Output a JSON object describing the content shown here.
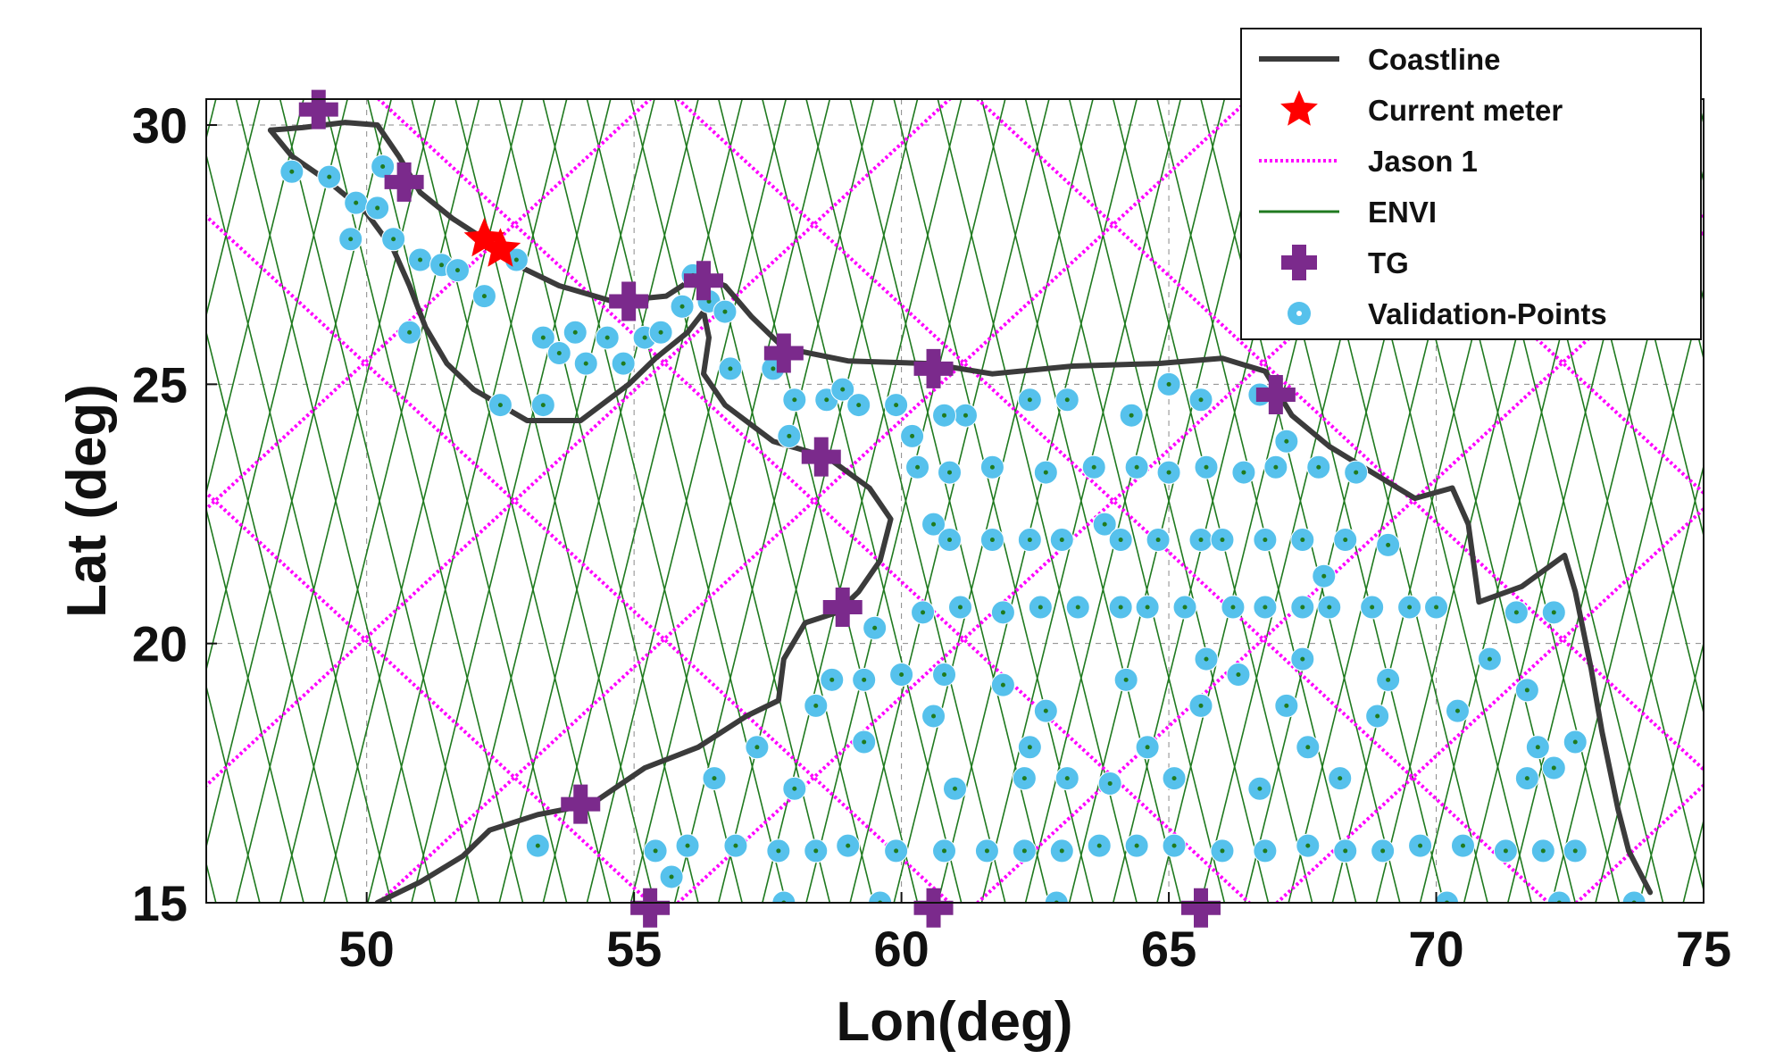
{
  "chart_data": {
    "type": "scatter",
    "title": "",
    "xlabel": "Lon(deg)",
    "ylabel": "Lat (deg)",
    "xlim": [
      47,
      75
    ],
    "ylim": [
      15,
      30.5
    ],
    "xticks": [
      "50",
      "55",
      "60",
      "65",
      "70",
      "75"
    ],
    "yticks": [
      "15",
      "20",
      "25",
      "30"
    ],
    "grid": "dashed",
    "legend_position": "top-right",
    "legend": [
      {
        "label": "Coastline",
        "symbol": "line",
        "color": "#3b3b3b"
      },
      {
        "label": "Current meter",
        "symbol": "star",
        "color": "#ff0000"
      },
      {
        "label": "Jason 1",
        "symbol": "dotted-line",
        "color": "#ff00ff"
      },
      {
        "label": "ENVI",
        "symbol": "line",
        "color": "#1f7a1f"
      },
      {
        "label": "TG",
        "symbol": "plus",
        "color": "#7b2a8c"
      },
      {
        "label": "Validation-Points",
        "symbol": "ring",
        "color": "#4fc3f7"
      }
    ],
    "colors": {
      "coastline": "#3b3b3b",
      "current_meter": "#ff0000",
      "jason1": "#ff00ff",
      "envi": "#1f7a1f",
      "tg": "#7b2a8c",
      "validation": "#56c1ec",
      "grid": "#8a8a8a"
    },
    "coastline": [
      [
        48.2,
        29.9
      ],
      [
        48.8,
        29.95
      ],
      [
        49.6,
        30.05
      ],
      [
        50.2,
        30.0
      ],
      [
        50.6,
        29.4
      ],
      [
        51.0,
        28.7
      ],
      [
        51.6,
        28.2
      ],
      [
        52.2,
        27.8
      ],
      [
        52.8,
        27.3
      ],
      [
        53.6,
        26.9
      ],
      [
        54.6,
        26.6
      ],
      [
        55.6,
        26.7
      ],
      [
        56.2,
        27.1
      ],
      [
        56.7,
        26.9
      ],
      [
        57.2,
        26.3
      ],
      [
        57.8,
        25.7
      ],
      [
        59.0,
        25.45
      ],
      [
        60.5,
        25.4
      ],
      [
        61.7,
        25.2
      ],
      [
        63.2,
        25.35
      ],
      [
        64.8,
        25.4
      ],
      [
        66.0,
        25.5
      ],
      [
        66.8,
        25.25
      ],
      [
        67.3,
        24.4
      ],
      [
        68.0,
        23.8
      ],
      [
        68.8,
        23.3
      ],
      [
        69.6,
        22.8
      ],
      [
        70.3,
        23.0
      ],
      [
        70.6,
        22.3
      ],
      [
        70.8,
        20.8
      ],
      [
        71.6,
        21.1
      ],
      [
        72.4,
        21.7
      ],
      [
        72.6,
        21.0
      ],
      [
        72.9,
        19.5
      ],
      [
        73.1,
        18.3
      ],
      [
        73.4,
        16.8
      ],
      [
        73.6,
        16.0
      ],
      [
        74.0,
        15.2
      ]
    ],
    "coastline_inner": [
      [
        48.2,
        29.9
      ],
      [
        48.6,
        29.4
      ],
      [
        49.3,
        28.9
      ],
      [
        50.0,
        28.3
      ],
      [
        50.5,
        27.6
      ],
      [
        50.8,
        26.9
      ],
      [
        51.1,
        26.1
      ],
      [
        51.5,
        25.4
      ],
      [
        52.0,
        24.9
      ],
      [
        53.0,
        24.3
      ],
      [
        54.0,
        24.3
      ],
      [
        54.9,
        25.0
      ],
      [
        55.4,
        25.5
      ],
      [
        56.0,
        26.0
      ],
      [
        56.3,
        26.4
      ],
      [
        56.4,
        25.9
      ],
      [
        56.3,
        25.2
      ],
      [
        56.7,
        24.6
      ],
      [
        57.6,
        23.9
      ],
      [
        58.6,
        23.6
      ],
      [
        59.4,
        23.0
      ],
      [
        59.8,
        22.4
      ],
      [
        59.6,
        21.6
      ],
      [
        59.2,
        21.0
      ],
      [
        58.8,
        20.6
      ],
      [
        58.2,
        20.4
      ],
      [
        57.8,
        19.7
      ],
      [
        57.7,
        18.9
      ],
      [
        57.1,
        18.6
      ],
      [
        56.2,
        18.0
      ],
      [
        55.2,
        17.6
      ],
      [
        54.2,
        16.9
      ],
      [
        53.2,
        16.7
      ],
      [
        52.3,
        16.4
      ],
      [
        51.8,
        15.9
      ],
      [
        51.0,
        15.4
      ],
      [
        50.2,
        15.0
      ]
    ],
    "current_meter": [
      [
        52.2,
        27.8
      ],
      [
        52.5,
        27.6
      ]
    ],
    "tg_stations": [
      [
        49.1,
        30.3
      ],
      [
        50.7,
        28.9
      ],
      [
        54.9,
        26.6
      ],
      [
        56.3,
        27.0
      ],
      [
        57.8,
        25.6
      ],
      [
        60.6,
        25.3
      ],
      [
        67.0,
        24.8
      ],
      [
        58.5,
        23.6
      ],
      [
        58.9,
        20.7
      ],
      [
        54.0,
        16.9
      ],
      [
        55.3,
        14.9
      ],
      [
        60.6,
        14.9
      ],
      [
        65.6,
        14.9
      ]
    ],
    "validation_points": [
      [
        48.6,
        29.1
      ],
      [
        49.3,
        29.0
      ],
      [
        50.3,
        29.2
      ],
      [
        49.8,
        28.5
      ],
      [
        50.2,
        28.4
      ],
      [
        49.7,
        27.8
      ],
      [
        50.5,
        27.8
      ],
      [
        51.0,
        27.4
      ],
      [
        51.4,
        27.3
      ],
      [
        51.7,
        27.2
      ],
      [
        52.2,
        26.7
      ],
      [
        52.8,
        27.4
      ],
      [
        50.8,
        26.0
      ],
      [
        53.3,
        25.9
      ],
      [
        53.9,
        26.0
      ],
      [
        53.6,
        25.6
      ],
      [
        54.5,
        25.9
      ],
      [
        54.8,
        25.4
      ],
      [
        54.1,
        25.4
      ],
      [
        55.2,
        25.9
      ],
      [
        55.5,
        26.0
      ],
      [
        55.9,
        26.5
      ],
      [
        56.1,
        27.1
      ],
      [
        56.4,
        26.6
      ],
      [
        56.7,
        26.4
      ],
      [
        52.5,
        24.6
      ],
      [
        53.3,
        24.6
      ],
      [
        56.8,
        25.3
      ],
      [
        57.6,
        25.3
      ],
      [
        58.0,
        24.7
      ],
      [
        58.6,
        24.7
      ],
      [
        58.9,
        24.9
      ],
      [
        59.2,
        24.6
      ],
      [
        59.9,
        24.6
      ],
      [
        57.9,
        24.0
      ],
      [
        60.2,
        24.0
      ],
      [
        60.3,
        23.4
      ],
      [
        60.9,
        23.3
      ],
      [
        61.7,
        23.4
      ],
      [
        61.2,
        24.4
      ],
      [
        60.8,
        24.4
      ],
      [
        62.4,
        24.7
      ],
      [
        63.1,
        24.7
      ],
      [
        64.3,
        24.4
      ],
      [
        65.0,
        25.0
      ],
      [
        65.6,
        24.7
      ],
      [
        66.7,
        24.8
      ],
      [
        62.7,
        23.3
      ],
      [
        63.6,
        23.4
      ],
      [
        64.4,
        23.4
      ],
      [
        65.0,
        23.3
      ],
      [
        65.7,
        23.4
      ],
      [
        66.4,
        23.3
      ],
      [
        67.0,
        23.4
      ],
      [
        67.8,
        23.4
      ],
      [
        68.5,
        23.3
      ],
      [
        67.2,
        23.9
      ],
      [
        60.6,
        22.3
      ],
      [
        60.9,
        22.0
      ],
      [
        61.7,
        22.0
      ],
      [
        62.4,
        22.0
      ],
      [
        63.0,
        22.0
      ],
      [
        63.8,
        22.3
      ],
      [
        64.1,
        22.0
      ],
      [
        64.8,
        22.0
      ],
      [
        65.6,
        22.0
      ],
      [
        66.0,
        22.0
      ],
      [
        66.8,
        22.0
      ],
      [
        67.5,
        22.0
      ],
      [
        68.3,
        22.0
      ],
      [
        69.1,
        21.9
      ],
      [
        67.9,
        21.3
      ],
      [
        59.5,
        20.3
      ],
      [
        60.4,
        20.6
      ],
      [
        61.1,
        20.7
      ],
      [
        61.9,
        20.6
      ],
      [
        62.6,
        20.7
      ],
      [
        63.3,
        20.7
      ],
      [
        64.1,
        20.7
      ],
      [
        64.6,
        20.7
      ],
      [
        65.3,
        20.7
      ],
      [
        66.2,
        20.7
      ],
      [
        66.8,
        20.7
      ],
      [
        67.5,
        20.7
      ],
      [
        68.0,
        20.7
      ],
      [
        68.8,
        20.7
      ],
      [
        69.5,
        20.7
      ],
      [
        70.0,
        20.7
      ],
      [
        71.5,
        20.6
      ],
      [
        72.2,
        20.6
      ],
      [
        58.7,
        19.3
      ],
      [
        59.3,
        19.3
      ],
      [
        60.0,
        19.4
      ],
      [
        60.8,
        19.4
      ],
      [
        61.9,
        19.2
      ],
      [
        65.7,
        19.7
      ],
      [
        64.2,
        19.3
      ],
      [
        66.3,
        19.4
      ],
      [
        67.5,
        19.7
      ],
      [
        69.1,
        19.3
      ],
      [
        71.0,
        19.7
      ],
      [
        71.7,
        19.1
      ],
      [
        58.4,
        18.8
      ],
      [
        59.3,
        18.1
      ],
      [
        60.6,
        18.6
      ],
      [
        57.3,
        18.0
      ],
      [
        62.4,
        18.0
      ],
      [
        62.7,
        18.7
      ],
      [
        64.6,
        18.0
      ],
      [
        65.6,
        18.8
      ],
      [
        67.2,
        18.8
      ],
      [
        67.6,
        18.0
      ],
      [
        68.9,
        18.6
      ],
      [
        70.4,
        18.7
      ],
      [
        71.9,
        18.0
      ],
      [
        72.6,
        18.1
      ],
      [
        56.5,
        17.4
      ],
      [
        58.0,
        17.2
      ],
      [
        61.0,
        17.2
      ],
      [
        62.3,
        17.4
      ],
      [
        63.1,
        17.4
      ],
      [
        63.9,
        17.3
      ],
      [
        65.1,
        17.4
      ],
      [
        66.7,
        17.2
      ],
      [
        68.2,
        17.4
      ],
      [
        71.7,
        17.4
      ],
      [
        72.2,
        17.6
      ],
      [
        53.2,
        16.1
      ],
      [
        55.4,
        16.0
      ],
      [
        56.0,
        16.1
      ],
      [
        56.9,
        16.1
      ],
      [
        57.7,
        16.0
      ],
      [
        58.4,
        16.0
      ],
      [
        59.0,
        16.1
      ],
      [
        59.9,
        16.0
      ],
      [
        60.8,
        16.0
      ],
      [
        61.6,
        16.0
      ],
      [
        62.3,
        16.0
      ],
      [
        63.0,
        16.0
      ],
      [
        63.7,
        16.1
      ],
      [
        64.4,
        16.1
      ],
      [
        65.1,
        16.1
      ],
      [
        66.0,
        16.0
      ],
      [
        66.8,
        16.0
      ],
      [
        67.6,
        16.1
      ],
      [
        68.3,
        16.0
      ],
      [
        69.0,
        16.0
      ],
      [
        69.7,
        16.1
      ],
      [
        70.5,
        16.1
      ],
      [
        71.3,
        16.0
      ],
      [
        72.0,
        16.0
      ],
      [
        72.6,
        16.0
      ],
      [
        55.7,
        15.5
      ],
      [
        57.8,
        15.0
      ],
      [
        59.6,
        15.0
      ],
      [
        62.9,
        15.0
      ],
      [
        70.2,
        15.0
      ],
      [
        72.3,
        15.0
      ],
      [
        73.7,
        15.0
      ]
    ],
    "jason1_tracks": {
      "start_lons": [
        38.5,
        44.1,
        49.7,
        55.3,
        60.9,
        66.5,
        72.1,
        77.7,
        83.3
      ],
      "slope_lon_per_lat": 1.05
    },
    "envi_tracks": {
      "spacing_lon": 0.82,
      "slope_lon_per_lat": 0.24
    }
  },
  "axes": {
    "xlabel": "Lon(deg)",
    "ylabel": "Lat (deg)"
  }
}
